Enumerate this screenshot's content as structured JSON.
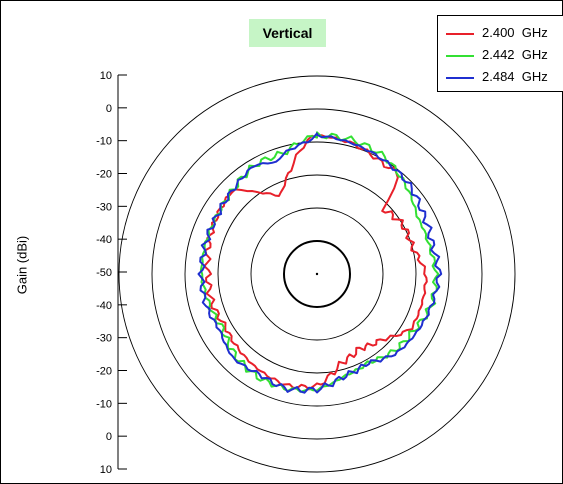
{
  "chart_data": {
    "type": "polar-line",
    "title": "Vertical",
    "ylabel": "Gain (dBi)",
    "radial_range_dbi": [
      -50,
      10
    ],
    "ring_values_dbi": [
      -40,
      -30,
      -20,
      -10,
      0,
      10
    ],
    "tick_labels": [
      "10",
      "0",
      "-10",
      "-20",
      "-30",
      "-40",
      "-50",
      "-40",
      "-30",
      "-20",
      "-10",
      "0",
      "10"
    ],
    "legend_position": "top-right",
    "grid": true,
    "series": [
      {
        "name": "2.400  GHz",
        "color": "#e8202a",
        "points": [
          [
            0,
            -8
          ],
          [
            15,
            -9
          ],
          [
            30,
            -11
          ],
          [
            40,
            -11
          ],
          [
            45,
            -22
          ],
          [
            60,
            -20
          ],
          [
            75,
            -20
          ],
          [
            90,
            -17
          ],
          [
            105,
            -17
          ],
          [
            120,
            -17
          ],
          [
            135,
            -22
          ],
          [
            150,
            -24
          ],
          [
            165,
            -22
          ],
          [
            180,
            -16
          ],
          [
            195,
            -15
          ],
          [
            210,
            -16
          ],
          [
            225,
            -17
          ],
          [
            240,
            -18
          ],
          [
            255,
            -17
          ],
          [
            270,
            -17
          ],
          [
            285,
            -16
          ],
          [
            300,
            -15
          ],
          [
            315,
            -14
          ],
          [
            325,
            -20
          ],
          [
            330,
            -22
          ],
          [
            335,
            -24
          ],
          [
            345,
            -18
          ],
          [
            355,
            -10
          ]
        ]
      },
      {
        "name": "2.442  GHz",
        "color": "#33e033",
        "points": [
          [
            0,
            -8
          ],
          [
            15,
            -8
          ],
          [
            30,
            -9
          ],
          [
            45,
            -12
          ],
          [
            60,
            -15
          ],
          [
            75,
            -15
          ],
          [
            90,
            -14
          ],
          [
            105,
            -14
          ],
          [
            120,
            -16
          ],
          [
            135,
            -17
          ],
          [
            150,
            -19
          ],
          [
            165,
            -18
          ],
          [
            180,
            -15
          ],
          [
            195,
            -14
          ],
          [
            210,
            -14
          ],
          [
            225,
            -15
          ],
          [
            240,
            -17
          ],
          [
            255,
            -16
          ],
          [
            270,
            -15
          ],
          [
            285,
            -15
          ],
          [
            300,
            -15
          ],
          [
            315,
            -14
          ],
          [
            330,
            -12
          ],
          [
            345,
            -12
          ],
          [
            355,
            -9
          ]
        ]
      },
      {
        "name": "2.484  GHz",
        "color": "#1f2fd0",
        "points": [
          [
            0,
            -8
          ],
          [
            15,
            -9
          ],
          [
            30,
            -10
          ],
          [
            45,
            -11
          ],
          [
            60,
            -13
          ],
          [
            75,
            -14
          ],
          [
            90,
            -13
          ],
          [
            105,
            -14
          ],
          [
            120,
            -15
          ],
          [
            135,
            -16
          ],
          [
            150,
            -19
          ],
          [
            165,
            -18
          ],
          [
            180,
            -15
          ],
          [
            195,
            -14
          ],
          [
            210,
            -15
          ],
          [
            225,
            -14
          ],
          [
            240,
            -16
          ],
          [
            255,
            -15
          ],
          [
            270,
            -15
          ],
          [
            285,
            -15
          ],
          [
            300,
            -15
          ],
          [
            315,
            -14
          ],
          [
            330,
            -12
          ],
          [
            340,
            -14
          ],
          [
            345,
            -12
          ],
          [
            355,
            -10
          ]
        ]
      }
    ]
  }
}
